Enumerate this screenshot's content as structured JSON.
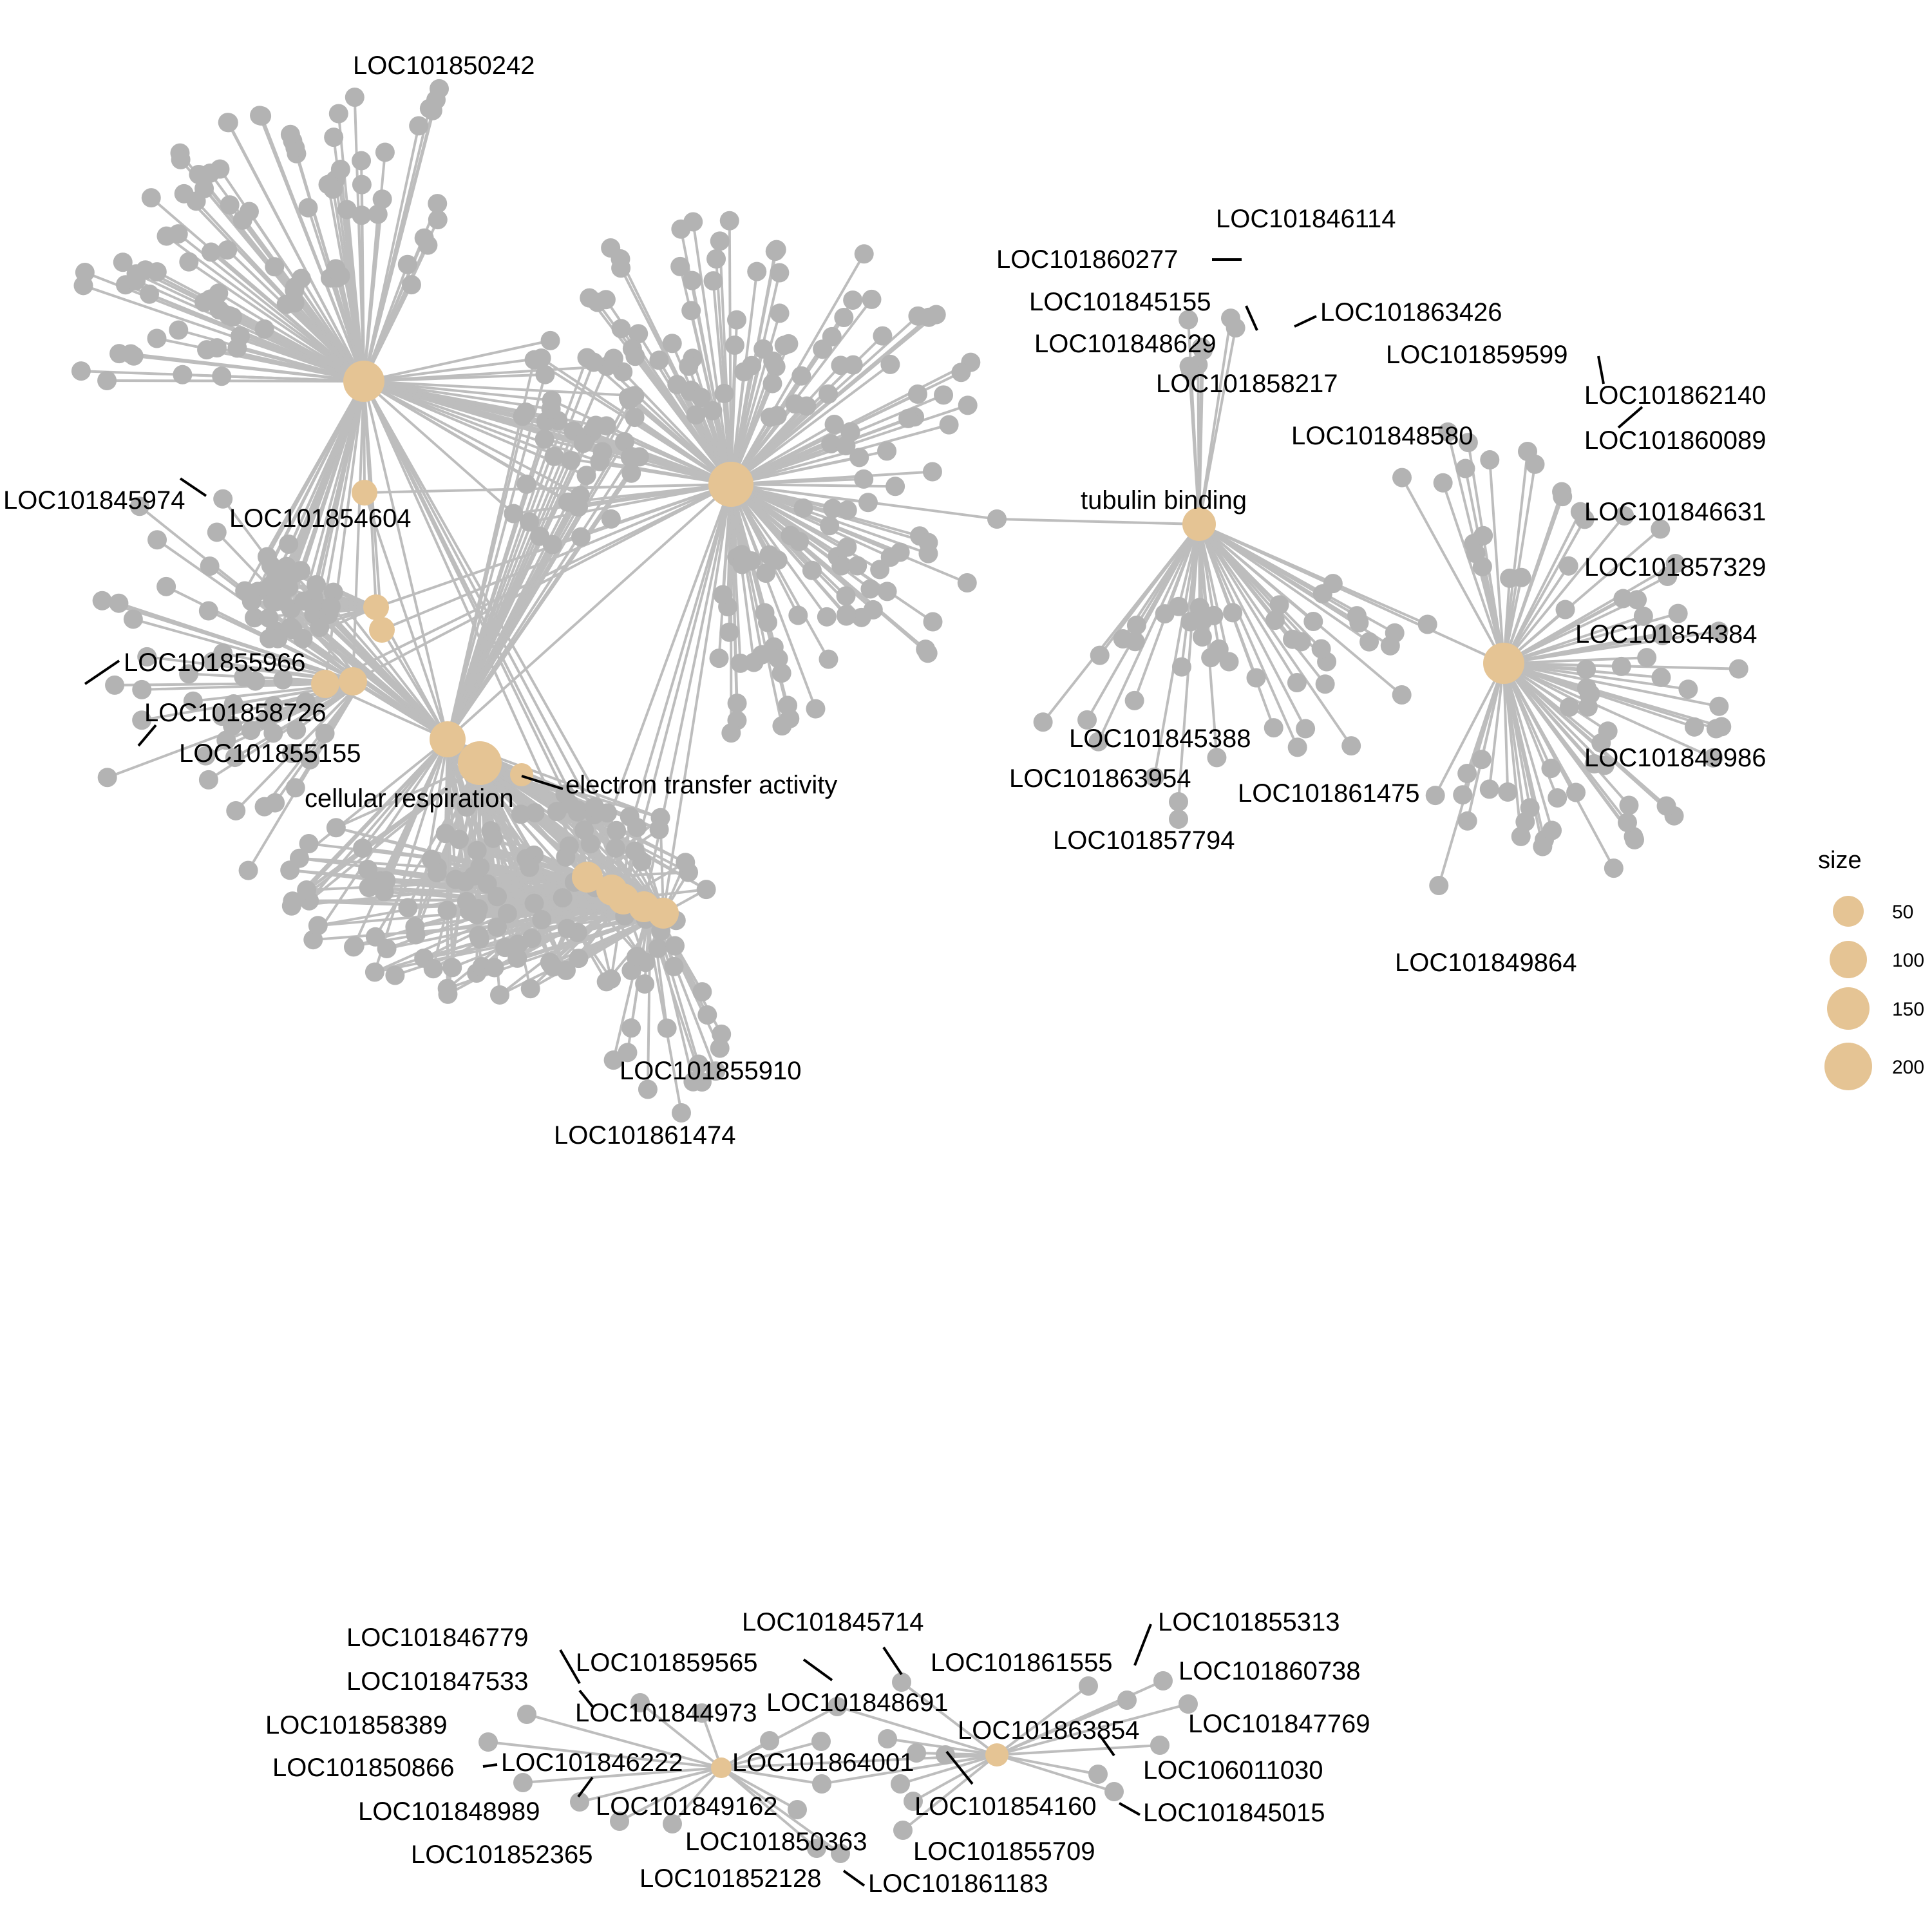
{
  "legend": {
    "title": "size",
    "entries": [
      {
        "label": "50",
        "value": 50
      },
      {
        "label": "100",
        "value": 100
      },
      {
        "label": "150",
        "value": 150
      },
      {
        "label": "200",
        "value": 200
      }
    ],
    "color": "#e5c494"
  },
  "colors": {
    "gene_node": "#b3b3b3",
    "term_node": "#e5c494",
    "edge": "#bdbdbd",
    "background": "#ffffff"
  },
  "term_labels": {
    "tubulin": "tubulin binding",
    "electron": "electron transfer activity",
    "respiration": "cellular respiration"
  },
  "gene_labels": {
    "g01": "LOC101850242",
    "g02": "LOC101845974",
    "g03": "LOC101854604",
    "g04": "LOC101855966",
    "g05": "LOC101858726",
    "g06": "LOC101855155",
    "g07": "LOC101855910",
    "g08": "LOC101861474",
    "g09": "LOC101846114",
    "g10": "LOC101860277",
    "g11": "LOC101845155",
    "g12": "LOC101863426",
    "g13": "LOC101848629",
    "g14": "LOC101858217",
    "g15": "LOC101859599",
    "g16": "LOC101862140",
    "g17": "LOC101860089",
    "g18": "LOC101848580",
    "g19": "LOC101846631",
    "g20": "LOC101857329",
    "g21": "LOC101854384",
    "g22": "LOC101845388",
    "g23": "LOC101849986",
    "g24": "LOC101863954",
    "g25": "LOC101861475",
    "g26": "LOC101857794",
    "g27": "LOC101849864",
    "g28": "LOC101845714",
    "g29": "LOC101855313",
    "g30": "LOC101846779",
    "g31": "LOC101859565",
    "g32": "LOC101861555",
    "g33": "LOC101860738",
    "g34": "LOC101847533",
    "g35": "LOC101848691",
    "g36": "LOC101844973",
    "g37": "LOC101847769",
    "g38": "LOC101858389",
    "g39": "LOC101863854",
    "g40": "LOC101850866",
    "g41": "LOC101846222",
    "g42": "LOC101864001",
    "g43": "LOC106011030",
    "g44": "LOC101848989",
    "g45": "LOC101849162",
    "g46": "LOC101854160",
    "g47": "LOC101845015",
    "g48": "LOC101852365",
    "g49": "LOC101850363",
    "g50": "LOC101855709",
    "g51": "LOC101852128",
    "g52": "LOC101861183"
  }
}
